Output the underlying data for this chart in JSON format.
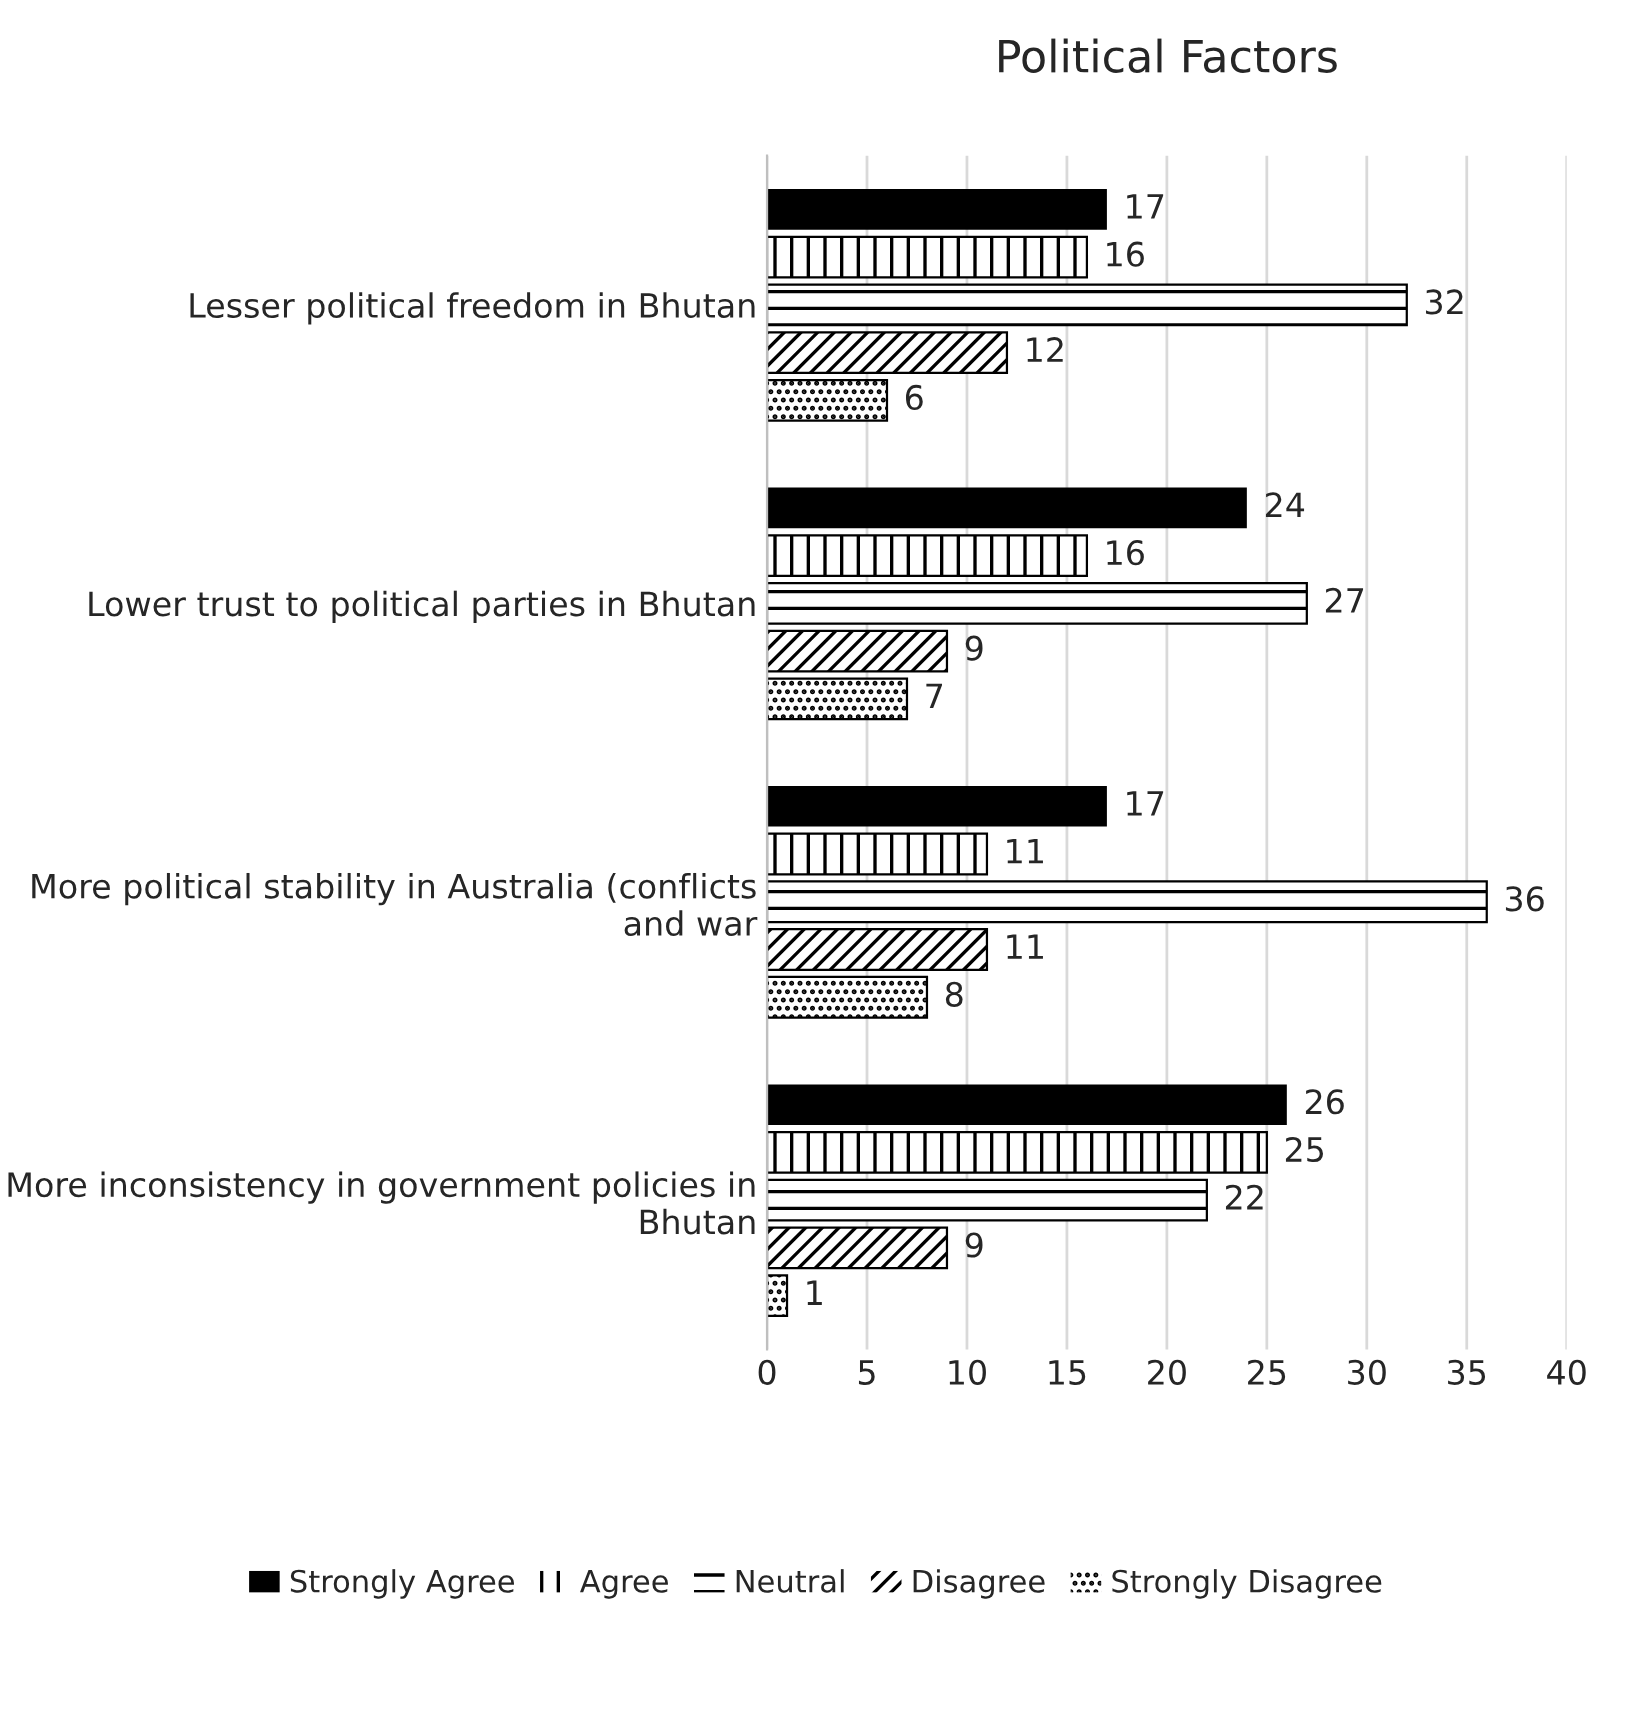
{
  "chart_data": {
    "type": "bar",
    "orientation": "horizontal",
    "title": "Political Factors",
    "categories": [
      "Lesser political freedom in Bhutan",
      "Lower trust to political parties in Bhutan",
      "More political stability in Australia (conflicts and war",
      "More inconsistency in government policies in Bhutan"
    ],
    "series": [
      {
        "name": "Strongly Agree",
        "color": "#000000",
        "values": [
          17,
          24,
          17,
          26
        ]
      },
      {
        "name": "Agree",
        "color": "#000000",
        "values": [
          16,
          16,
          11,
          25
        ]
      },
      {
        "name": "Neutral",
        "color": "#000000",
        "values": [
          32,
          27,
          36,
          22
        ]
      },
      {
        "name": "Disagree",
        "color": "#000000",
        "values": [
          12,
          9,
          11,
          9
        ]
      },
      {
        "name": "Strongly Disagree",
        "color": "#000000",
        "values": [
          6,
          7,
          8,
          1
        ]
      }
    ],
    "xlim": [
      0,
      40
    ],
    "xticks": [
      0,
      5,
      10,
      15,
      20,
      25,
      30,
      35,
      40
    ],
    "grid": "x",
    "legend": "bottom",
    "data_labels": true
  }
}
